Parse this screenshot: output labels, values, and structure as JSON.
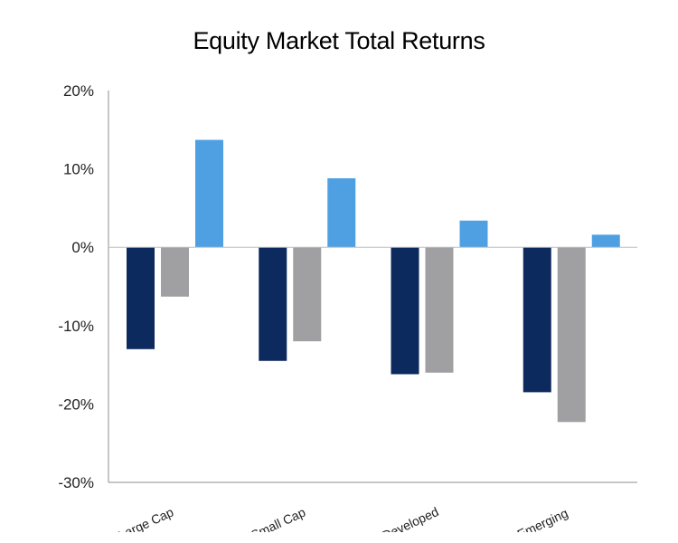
{
  "chart_data": {
    "type": "bar",
    "title": "Equity Market Total Returns",
    "xlabel": "",
    "ylabel": "",
    "categories": [
      "Large Cap",
      "Small Cap",
      "Developed",
      "Emerging"
    ],
    "series": [
      {
        "values": [
          -13,
          -14.5,
          -16.2,
          -18.5
        ],
        "color": "#0d2a5e"
      },
      {
        "values": [
          -6.3,
          -12,
          -16,
          -22.3
        ],
        "color": "#a0a0a2"
      },
      {
        "values": [
          13.7,
          8.8,
          3.4,
          1.6
        ],
        "color": "#4fa0e3"
      }
    ],
    "ylim": [
      -30,
      20
    ],
    "yticks": [
      20,
      10,
      0,
      -10,
      -20,
      -30
    ],
    "ytick_labels": [
      "20%",
      "10%",
      "0%",
      "-10%",
      "-20%",
      "-30%"
    ],
    "grid": false,
    "legend": "none"
  }
}
